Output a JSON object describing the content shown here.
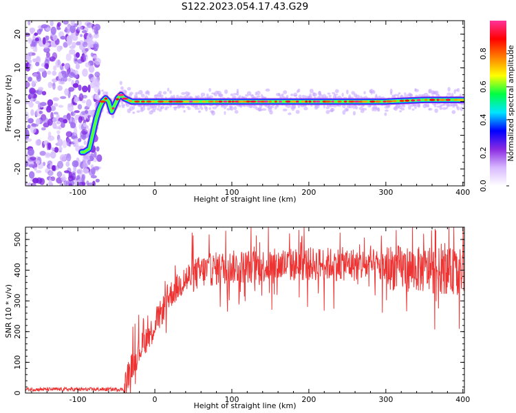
{
  "figure": {
    "title": "S122.2023.054.17.43.G29"
  },
  "chart_data": [
    {
      "type": "heatmap",
      "xlabel": "Height of straight line (km)",
      "ylabel": "Frequency (Hz)",
      "xlim": [
        -168,
        402
      ],
      "ylim": [
        -25,
        24
      ],
      "xticks": [
        -100,
        0,
        100,
        200,
        300,
        400
      ],
      "yticks": [
        -20,
        -10,
        0,
        10,
        20
      ],
      "colorbar": {
        "label": "Normalized spectral amplitude",
        "range": [
          0.0,
          1.0
        ],
        "ticks": [
          0.0,
          0.2,
          0.4,
          0.6,
          0.8
        ],
        "colormap": [
          "#ffffff",
          "#d8b8ff",
          "#8a2be2",
          "#0000ff",
          "#00e5ff",
          "#00ff44",
          "#ffff00",
          "#ff8000",
          "#ff0000",
          "#ff3399"
        ]
      },
      "ridge": {
        "description_points_x": [
          -92,
          -85,
          -80,
          -76,
          -72,
          -68,
          -64,
          -60,
          -56,
          -52,
          -48,
          -44,
          -40,
          -35,
          -30,
          -20,
          0,
          50,
          100,
          150,
          200,
          250,
          300,
          350,
          400
        ],
        "description_points_y": [
          -15,
          -14,
          -9,
          -5,
          -2,
          0,
          1,
          0,
          -3,
          -1,
          1,
          2,
          1,
          0.5,
          0,
          0,
          0,
          0,
          0,
          0,
          0,
          0,
          0,
          0.5,
          0.5
        ]
      }
    },
    {
      "type": "line",
      "xlabel": "Height of straight line (km)",
      "ylabel": "SNR (10 * v/v)",
      "xlim": [
        -168,
        402
      ],
      "ylim": [
        0,
        540
      ],
      "xticks": [
        -100,
        0,
        100,
        200,
        300,
        400
      ],
      "yticks": [
        0,
        100,
        200,
        300,
        400,
        500
      ],
      "series_color": "#ee3333",
      "trend": {
        "x": [
          -168,
          -40,
          -35,
          -20,
          0,
          20,
          40,
          60,
          80,
          100,
          150,
          200,
          250,
          300,
          350,
          400
        ],
        "y": [
          12,
          12,
          60,
          140,
          220,
          320,
          370,
          395,
          405,
          410,
          415,
          420,
          420,
          410,
          400,
          395
        ]
      }
    }
  ]
}
